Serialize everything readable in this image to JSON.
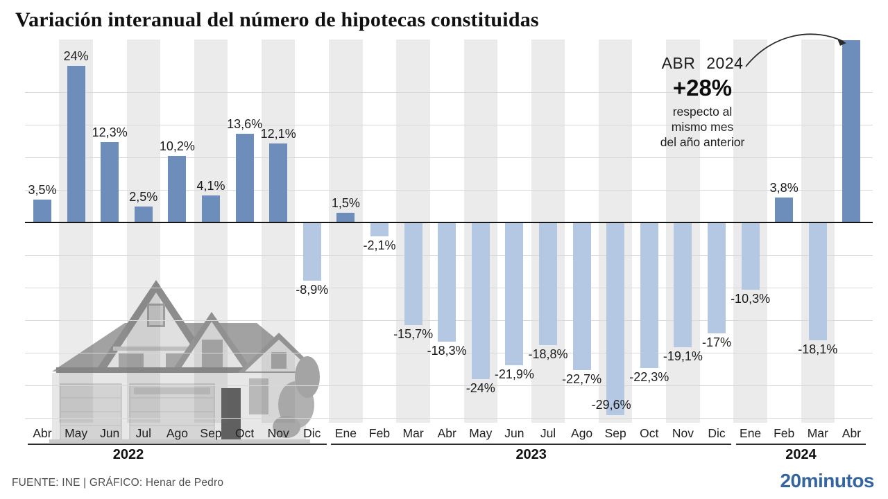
{
  "title": "Variación interanual del número de hipotecas constituidas",
  "annotation": {
    "period": "ABR 2024",
    "value": "+28%",
    "note_lines": [
      "respecto al",
      "mismo mes",
      "del año anterior"
    ]
  },
  "footer": {
    "source": "FUENTE: INE  |  GRÁFICO: Henar de Pedro",
    "logo": "20minutos"
  },
  "colors": {
    "positive_bar": "#6d8eba",
    "negative_bar": "#b4c7e3",
    "grid": "#d9d9d9",
    "axis": "#151515",
    "label": "#1b1b1b",
    "logo_blue": "#34659e",
    "footer_text": "#4f4f4f"
  },
  "chart_data": {
    "type": "bar",
    "unit": "%",
    "title": "Variación interanual del número de hipotecas constituidas",
    "categories": [
      "Abr",
      "May",
      "Jun",
      "Jul",
      "Ago",
      "Sep",
      "Oct",
      "Nov",
      "Dic",
      "Ene",
      "Feb",
      "Mar",
      "Abr",
      "May",
      "Jun",
      "Jul",
      "Ago",
      "Sep",
      "Oct",
      "Nov",
      "Dic",
      "Ene",
      "Feb",
      "Mar",
      "Abr"
    ],
    "values": [
      3.5,
      24,
      12.3,
      2.5,
      10.2,
      4.1,
      13.6,
      12.1,
      -8.9,
      1.5,
      -2.1,
      -15.7,
      -18.3,
      -24,
      -21.9,
      -18.8,
      -22.7,
      -29.6,
      -22.3,
      -19.1,
      -17,
      -10.3,
      3.8,
      -18.1,
      28
    ],
    "value_labels": [
      "3,5%",
      "24%",
      "12,3%",
      "2,5%",
      "10,2%",
      "4,1%",
      "13,6%",
      "12,1%",
      "-8,9%",
      "1,5%",
      "-2,1%",
      "-15,7%",
      "-18,3%",
      "-24%",
      "-21,9%",
      "-18,8%",
      "-22,7%",
      "-29,6%",
      "-22,3%",
      "-19,1%",
      "-17%",
      "-10,3%",
      "3,8%",
      "-18,1%",
      ""
    ],
    "year_groups": [
      {
        "label": "2022",
        "from": 0,
        "to": 8
      },
      {
        "label": "2023",
        "from": 9,
        "to": 20
      },
      {
        "label": "2024",
        "from": 21,
        "to": 24
      }
    ],
    "highlight": {
      "index": 24,
      "period": "ABR 2024",
      "value": "+28%",
      "note": "respecto al mismo mes del año anterior"
    },
    "ylim": [
      -30,
      30
    ],
    "gridline_step": 5,
    "grid": true,
    "legend": false
  }
}
